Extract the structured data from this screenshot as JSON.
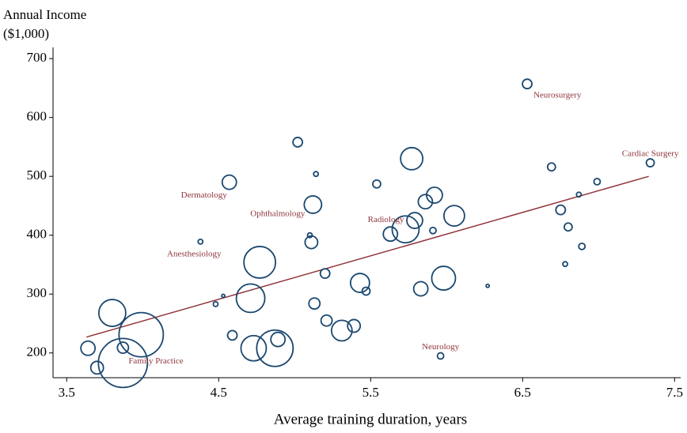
{
  "chart_data": {
    "type": "scatter",
    "ylabel": [
      "Annual Income",
      "($1,000)"
    ],
    "xlabel": "Average training duration, years",
    "xlim": [
      3.41,
      7.54
    ],
    "ylim": [
      158,
      719
    ],
    "xticks": [
      3.5,
      4.5,
      5.5,
      6.5,
      7.5
    ],
    "yticks": [
      200,
      300,
      400,
      500,
      600,
      700
    ],
    "grid": false,
    "color": "#1a476f",
    "x": [
      6.53,
      7.34,
      5.02,
      6.69,
      6.99,
      6.87,
      5.14,
      5.54,
      4.57,
      5.12,
      5.77,
      5.92,
      5.86,
      5.79,
      5.73,
      5.63,
      6.05,
      5.91,
      6.75,
      6.8,
      6.89,
      6.78,
      4.38,
      5.1,
      5.11,
      4.77,
      5.2,
      5.43,
      5.47,
      5.98,
      5.83,
      6.27,
      4.53,
      4.48,
      4.71,
      5.13,
      3.8,
      5.21,
      5.31,
      5.39,
      3.99,
      4.59,
      4.89,
      4.73,
      4.87,
      3.64,
      3.87,
      3.87,
      3.7,
      5.96
    ],
    "values": [
      657,
      523,
      558,
      516,
      491,
      469,
      504,
      487,
      490,
      452,
      530,
      468,
      457,
      425,
      410,
      402,
      433,
      408,
      443,
      414,
      381,
      351,
      389,
      400,
      388,
      354,
      335,
      319,
      305,
      327,
      309,
      314,
      297,
      283,
      293,
      284,
      268,
      255,
      238,
      246,
      231,
      230,
      223,
      208,
      208,
      208,
      209,
      183,
      175,
      195
    ],
    "sizes": [
      6,
      5,
      6,
      5,
      4,
      3,
      3,
      5,
      9,
      11,
      14,
      10,
      9,
      10,
      17,
      9,
      13,
      4,
      6,
      5,
      4,
      3,
      3,
      3,
      8,
      20,
      6,
      12,
      5,
      15,
      9,
      2,
      2,
      3,
      18,
      7,
      17,
      7,
      13,
      8,
      28,
      6,
      9,
      16,
      23,
      9,
      7,
      31,
      8,
      4
    ],
    "labels": [
      "Neurosurgery",
      "Cardiac Surgery",
      null,
      null,
      null,
      null,
      null,
      null,
      "Dermatology",
      "Ophthalmology",
      null,
      null,
      null,
      null,
      "Radiology",
      null,
      null,
      null,
      null,
      null,
      null,
      null,
      "Anesthesiology",
      null,
      null,
      null,
      null,
      null,
      null,
      null,
      null,
      null,
      null,
      null,
      null,
      null,
      null,
      null,
      null,
      null,
      null,
      null,
      null,
      null,
      null,
      null,
      null,
      "Family Practice",
      null,
      "Neurology"
    ],
    "label_color": "#90353b",
    "fit": {
      "type": "line",
      "color": "#90353b",
      "x": [
        3.63,
        7.33
      ],
      "values": [
        227,
        500
      ]
    }
  }
}
